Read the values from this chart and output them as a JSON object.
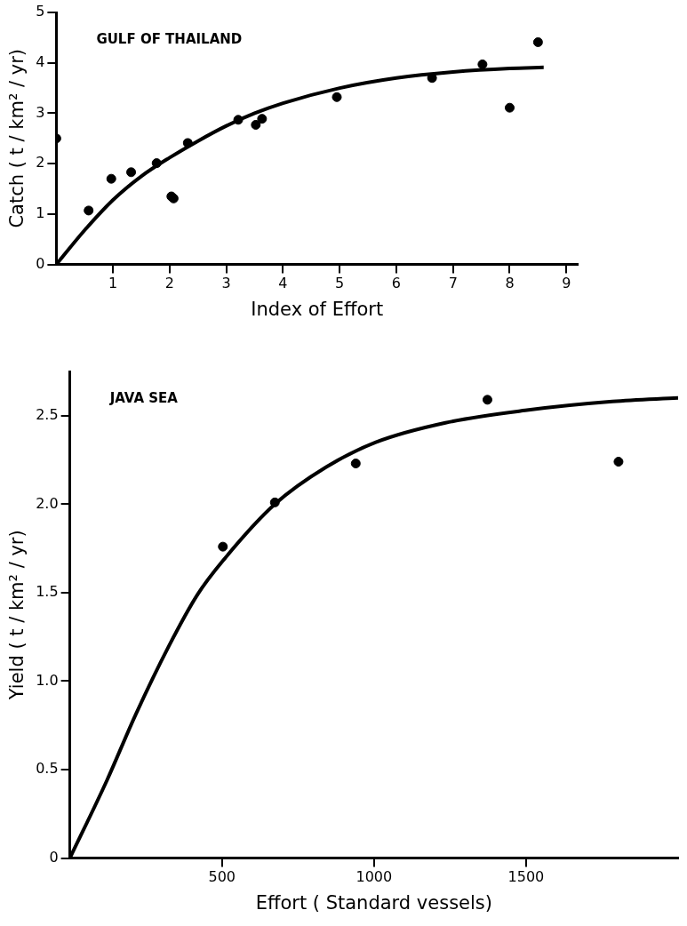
{
  "chart_data": [
    {
      "type": "scatter",
      "ylabel": "Catch ( t / km² / yr)",
      "xlabel": "Index of Effort",
      "annotations": [
        "GULF OF THAILAND"
      ],
      "xlim": [
        0,
        9.2
      ],
      "xticks": [
        1,
        2,
        3,
        4,
        5,
        6,
        7,
        8,
        9
      ],
      "ylim": [
        0,
        5
      ],
      "yticks": [
        0,
        1,
        2,
        3,
        4,
        5
      ],
      "grid": false,
      "legend": false,
      "series": [
        {
          "marker": "circle",
          "color": "#000000",
          "x": [
            0,
            0.57,
            0.97,
            1.32,
            1.77,
            2.03,
            2.07,
            2.32,
            3.21,
            3.52,
            3.63,
            4.95,
            6.63,
            7.52,
            8.0,
            8.5
          ],
          "values": [
            2.5,
            1.07,
            1.7,
            1.83,
            2.01,
            1.35,
            1.31,
            2.41,
            2.87,
            2.77,
            2.89,
            3.32,
            3.7,
            3.97,
            3.11,
            4.41
          ]
        },
        {
          "type": "line",
          "marker": "none",
          "color": "#000000",
          "line_style": "solid",
          "x": [
            0,
            0.5,
            1,
            1.5,
            2,
            2.5,
            3,
            3.5,
            4,
            5,
            6,
            7,
            8,
            8.6
          ],
          "values": [
            0,
            0.68,
            1.28,
            1.75,
            2.12,
            2.45,
            2.75,
            3.0,
            3.2,
            3.5,
            3.7,
            3.82,
            3.89,
            3.91
          ]
        }
      ]
    },
    {
      "type": "scatter",
      "ylabel": "Yield ( t / km² / yr)",
      "xlabel": "Effort ( Standard vessels)",
      "annotations": [
        "JAVA SEA"
      ],
      "xlim": [
        0,
        2000
      ],
      "xticks": [
        500,
        1000,
        1500
      ],
      "ylim": [
        0,
        2.75
      ],
      "yticks": [
        0,
        0.5,
        {
          "value": 1,
          "label": "1.0"
        },
        1.5,
        {
          "value": 2,
          "label": "2.0"
        },
        2.5
      ],
      "grid": false,
      "legend": false,
      "series": [
        {
          "marker": "circle",
          "color": "#000000",
          "x": [
            503,
            674,
            940,
            1373,
            1804
          ],
          "values": [
            1.76,
            2.01,
            2.23,
            2.59,
            2.24
          ]
        },
        {
          "type": "line",
          "marker": "none",
          "color": "#000000",
          "line_style": "solid",
          "x": [
            0,
            122,
            216,
            326,
            420,
            503,
            674,
            843,
            1006,
            1235,
            1497,
            1784,
            2000
          ],
          "values": [
            0,
            0.44,
            0.81,
            1.2,
            1.49,
            1.68,
            2.0,
            2.21,
            2.35,
            2.46,
            2.53,
            2.58,
            2.6
          ]
        }
      ]
    }
  ]
}
